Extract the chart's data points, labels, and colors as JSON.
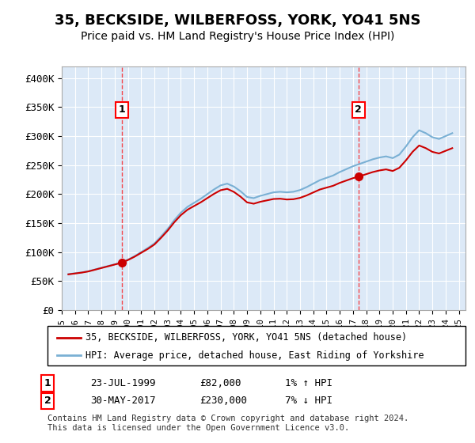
{
  "title": "35, BECKSIDE, WILBERFOSS, YORK, YO41 5NS",
  "subtitle": "Price paid vs. HM Land Registry's House Price Index (HPI)",
  "title_fontsize": 13,
  "subtitle_fontsize": 11,
  "ylabel_ticks": [
    "£0",
    "£50K",
    "£100K",
    "£150K",
    "£200K",
    "£250K",
    "£300K",
    "£350K",
    "£400K"
  ],
  "ytick_values": [
    0,
    50000,
    100000,
    150000,
    200000,
    250000,
    300000,
    350000,
    400000
  ],
  "ylim": [
    0,
    420000
  ],
  "xlim_start": 1995.0,
  "xlim_end": 2025.5,
  "background_color": "#dce9f7",
  "plot_bg_color": "#dce9f7",
  "grid_color": "#ffffff",
  "hpi_color": "#7ab0d4",
  "price_color": "#cc0000",
  "legend_label_red": "35, BECKSIDE, WILBERFOSS, YORK, YO41 5NS (detached house)",
  "legend_label_blue": "HPI: Average price, detached house, East Riding of Yorkshire",
  "footnote": "Contains HM Land Registry data © Crown copyright and database right 2024.\nThis data is licensed under the Open Government Licence v3.0.",
  "purchase_1_x": 1999.55,
  "purchase_1_y": 82000,
  "purchase_1_label": "1",
  "purchase_1_date": "23-JUL-1999",
  "purchase_1_price": "£82,000",
  "purchase_1_hpi": "1% ↑ HPI",
  "purchase_2_x": 2017.41,
  "purchase_2_y": 230000,
  "purchase_2_label": "2",
  "purchase_2_date": "30-MAY-2017",
  "purchase_2_price": "£230,000",
  "purchase_2_hpi": "7% ↓ HPI",
  "hpi_years": [
    1995.5,
    1996.0,
    1996.5,
    1997.0,
    1997.5,
    1998.0,
    1998.5,
    1999.0,
    1999.5,
    2000.0,
    2000.5,
    2001.0,
    2001.5,
    2002.0,
    2002.5,
    2003.0,
    2003.5,
    2004.0,
    2004.5,
    2005.0,
    2005.5,
    2006.0,
    2006.5,
    2007.0,
    2007.5,
    2008.0,
    2008.5,
    2009.0,
    2009.5,
    2010.0,
    2010.5,
    2011.0,
    2011.5,
    2012.0,
    2012.5,
    2013.0,
    2013.5,
    2014.0,
    2014.5,
    2015.0,
    2015.5,
    2016.0,
    2016.5,
    2017.0,
    2017.5,
    2018.0,
    2018.5,
    2019.0,
    2019.5,
    2020.0,
    2020.5,
    2021.0,
    2021.5,
    2022.0,
    2022.5,
    2023.0,
    2023.5,
    2024.0,
    2024.5
  ],
  "hpi_values": [
    62000,
    63500,
    65000,
    67000,
    70000,
    73000,
    76000,
    79000,
    82000,
    87000,
    93000,
    100000,
    107000,
    115000,
    127000,
    140000,
    155000,
    168000,
    178000,
    185000,
    192000,
    200000,
    208000,
    215000,
    218000,
    213000,
    205000,
    195000,
    193000,
    197000,
    200000,
    203000,
    204000,
    203000,
    204000,
    207000,
    212000,
    218000,
    224000,
    228000,
    232000,
    238000,
    243000,
    248000,
    252000,
    256000,
    260000,
    263000,
    265000,
    262000,
    268000,
    282000,
    298000,
    310000,
    305000,
    298000,
    295000,
    300000,
    305000
  ]
}
